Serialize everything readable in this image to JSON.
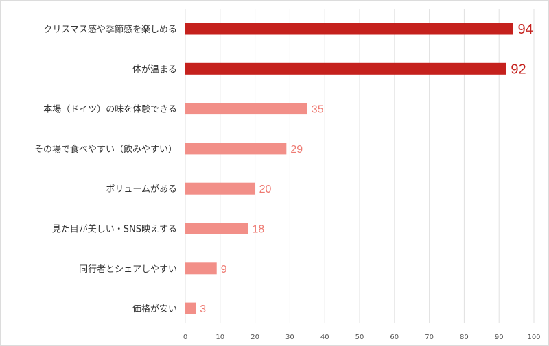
{
  "chart_data": {
    "type": "bar",
    "orientation": "horizontal",
    "categories": [
      "クリスマス感や季節感を楽しめる",
      "体が温まる",
      "本場（ドイツ）の味を体験できる",
      "その場で食べやすい（飲みやすい）",
      "ボリュームがある",
      "見た目が美しい・SNS映えする",
      "同行者とシェアしやすい",
      "価格が安い"
    ],
    "values": [
      94,
      92,
      35,
      29,
      20,
      18,
      9,
      3
    ],
    "value_labels": [
      "94",
      "92",
      "35",
      "29",
      "20",
      "18",
      "9",
      "3"
    ],
    "highlighted": [
      true,
      true,
      false,
      false,
      false,
      false,
      false,
      false
    ],
    "xlim": [
      0,
      100
    ],
    "xticks": [
      "0",
      "10",
      "20",
      "30",
      "40",
      "50",
      "60",
      "70",
      "80",
      "90",
      "100"
    ],
    "grid": "vertical",
    "legend": "none",
    "title": "",
    "xlabel": "",
    "ylabel": "",
    "colors": {
      "highlight_bar": "#c5211d",
      "normal_bar": "#f28f88",
      "highlight_label": "#c5211d",
      "normal_label": "#ee7a72",
      "grid": "#e0e0e0"
    }
  }
}
